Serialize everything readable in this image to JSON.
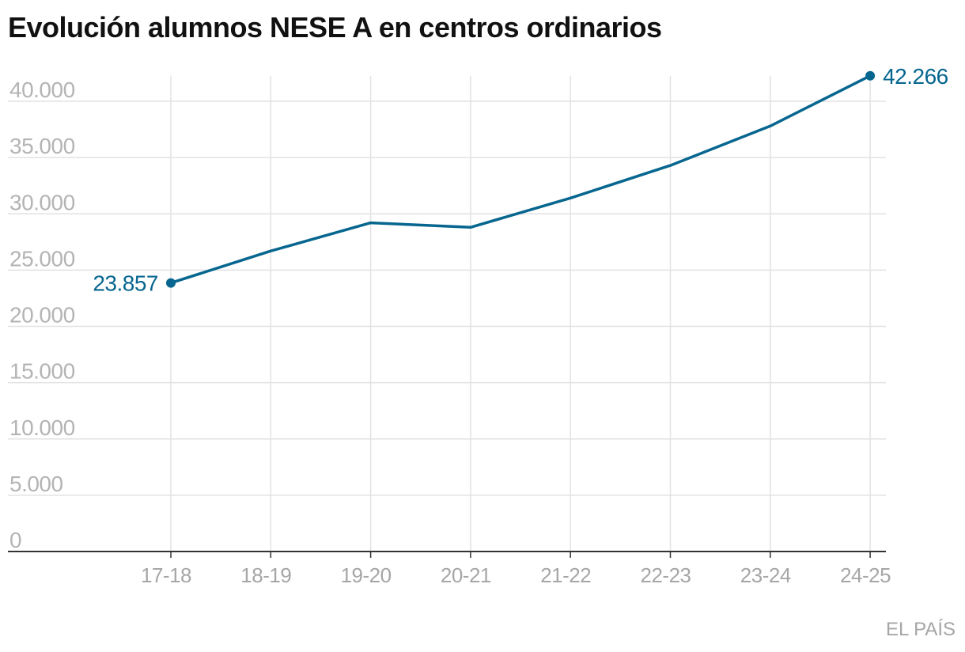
{
  "title": "Evolución alumnos NESE A en centros ordinarios",
  "source": "EL PAÍS",
  "colors": {
    "line": "#06668f",
    "grid": "#e2e2e2",
    "axis": "#333333",
    "tick_text": "#b4b4b4"
  },
  "chart_data": {
    "type": "line",
    "title": "Evolución alumnos NESE A en centros ordinarios",
    "xlabel": "",
    "ylabel": "",
    "categories": [
      "17-18",
      "18-19",
      "19-20",
      "20-21",
      "21-22",
      "22-23",
      "23-24",
      "24-25"
    ],
    "series": [
      {
        "values": [
          23857,
          26700,
          29200,
          28800,
          31400,
          34300,
          37800,
          42266
        ]
      }
    ],
    "ylim": [
      0,
      42266
    ],
    "yticks": [
      0,
      5000,
      10000,
      15000,
      20000,
      25000,
      30000,
      35000,
      40000
    ],
    "ytick_labels": [
      "0",
      "5.000",
      "10.000",
      "15.000",
      "20.000",
      "25.000",
      "30.000",
      "35.000",
      "40.000"
    ],
    "data_labels": [
      {
        "index": 0,
        "text": "23.857"
      },
      {
        "index": 7,
        "text": "42.266"
      }
    ],
    "grid": true,
    "legend": "none"
  }
}
